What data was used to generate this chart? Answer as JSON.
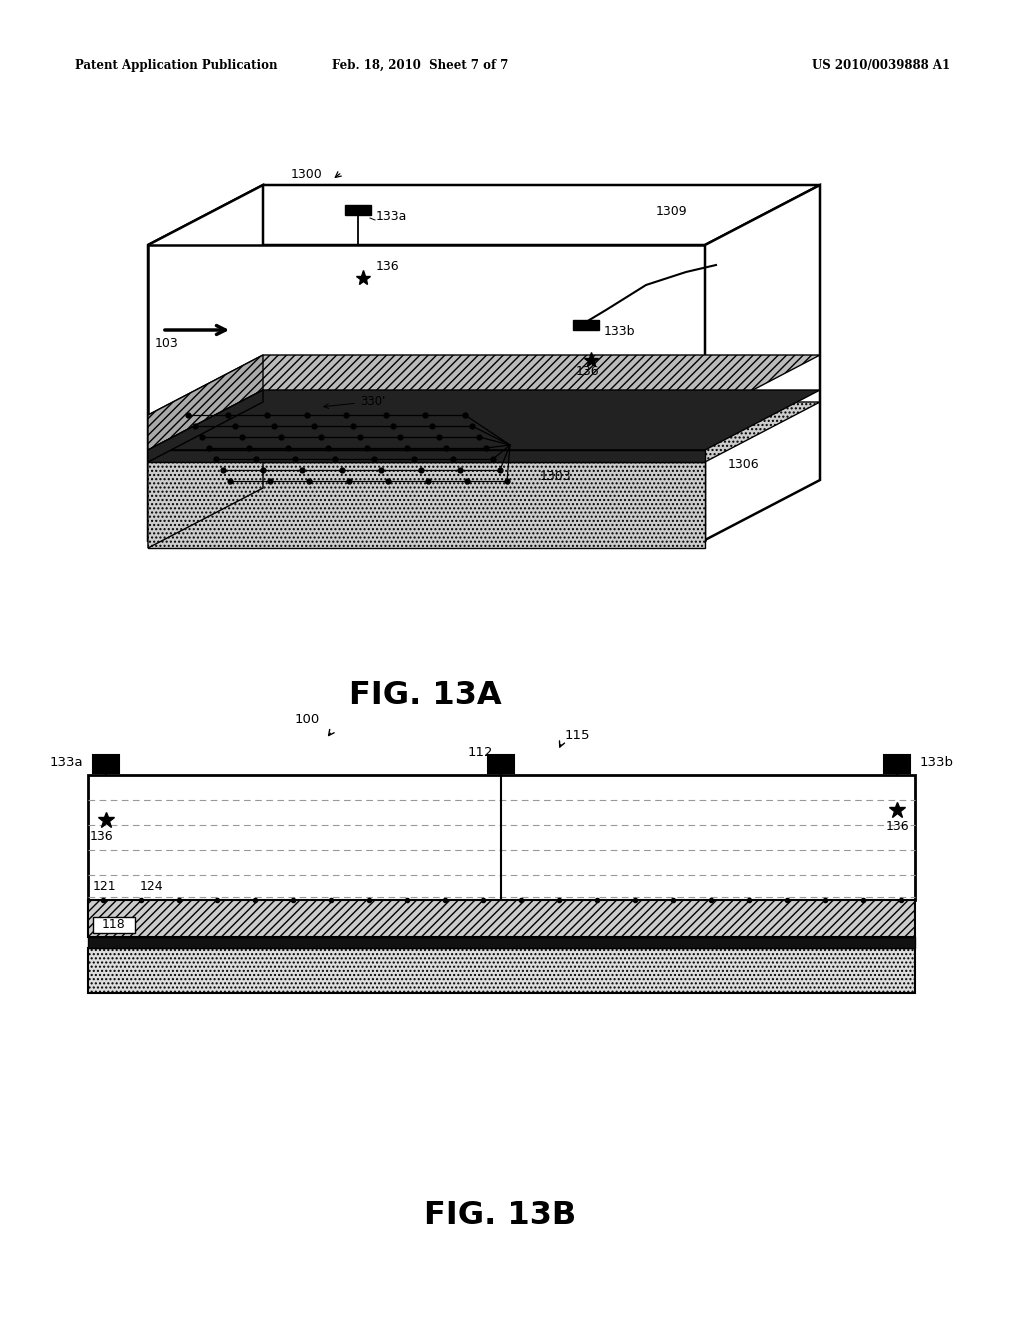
{
  "header_left": "Patent Application Publication",
  "header_mid": "Feb. 18, 2010  Sheet 7 of 7",
  "header_right": "US 2010/0039888 A1",
  "fig13a_label": "FIG. 13A",
  "fig13b_label": "FIG. 13B",
  "bg_color": "#ffffff",
  "line_color": "#000000"
}
